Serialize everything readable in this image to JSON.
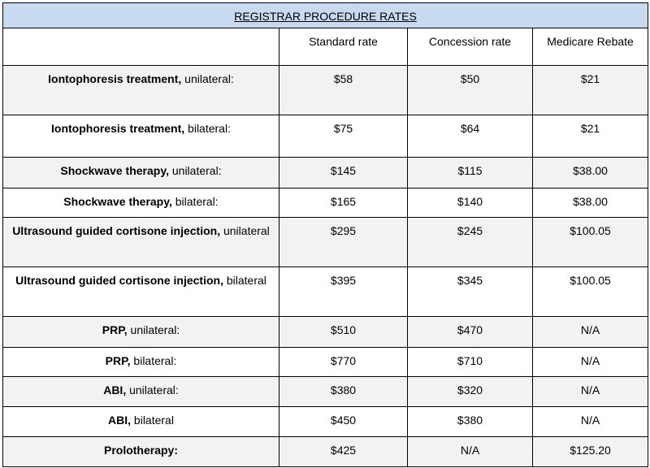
{
  "title": "REGISTRAR PROCEDURE RATES",
  "columns": [
    "",
    "Standard rate",
    "Concession rate",
    "Medicare Rebate"
  ],
  "rows": [
    {
      "name": "Iontophoresis treatment,",
      "qualifier": " unilateral:",
      "standard": "$58",
      "concession": "$50",
      "medicare": "$21"
    },
    {
      "name": "Iontophoresis treatment,",
      "qualifier": " bilateral:",
      "standard": "$75",
      "concession": "$64",
      "medicare": "$21"
    },
    {
      "name": "Shockwave therapy,",
      "qualifier": " unilateral:",
      "standard": "$145",
      "concession": "$115",
      "medicare": "$38.00"
    },
    {
      "name": "Shockwave therapy,",
      "qualifier": " bilateral:",
      "standard": "$165",
      "concession": "$140",
      "medicare": "$38.00"
    },
    {
      "name": "Ultrasound guided cortisone injection,",
      "qualifier": " unilateral",
      "standard": "$295",
      "concession": "$245",
      "medicare": "$100.05"
    },
    {
      "name": "Ultrasound guided cortisone injection,",
      "qualifier": " bilateral",
      "standard": "$395",
      "concession": "$345",
      "medicare": "$100.05"
    },
    {
      "name": "PRP,",
      "qualifier": " unilateral:",
      "standard": "$510",
      "concession": "$470",
      "medicare": "N/A"
    },
    {
      "name": "PRP,",
      "qualifier": " bilateral:",
      "standard": "$770",
      "concession": "$710",
      "medicare": "N/A"
    },
    {
      "name": "ABI,",
      "qualifier": " unilateral:",
      "standard": "$380",
      "concession": "$320",
      "medicare": "N/A"
    },
    {
      "name": "ABI,",
      "qualifier": " bilateral",
      "standard": "$450",
      "concession": "$380",
      "medicare": "N/A"
    },
    {
      "name": "Prolotherapy:",
      "qualifier": "",
      "standard": "$425",
      "concession": "N/A",
      "medicare": "$125.20"
    }
  ]
}
